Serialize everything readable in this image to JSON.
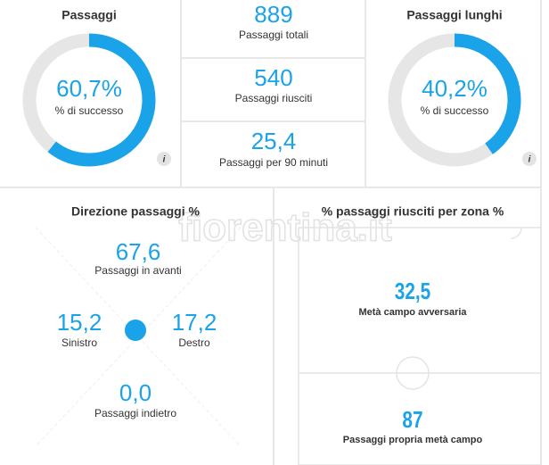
{
  "passaggi": {
    "title": "Passaggi",
    "success": {
      "value": 60.7,
      "label": "60,7%"
    },
    "success_label": "% di successo",
    "info": "i"
  },
  "stats": [
    {
      "value": "889",
      "label": "Passaggi totali"
    },
    {
      "value": "540",
      "label": "Passaggi riusciti"
    },
    {
      "value": "25,4",
      "label": "Passaggi per 90 minuti"
    }
  ],
  "passaggi_lunghi": {
    "title": "Passaggi lunghi",
    "success": {
      "value": 40.2,
      "label": "40,2%"
    },
    "success_label": "% di successo",
    "info": "i"
  },
  "direzione": {
    "title": "Direzione passaggi %",
    "items": [
      {
        "value": "67,6",
        "label": "Passaggi in avanti"
      },
      {
        "value": "15,2",
        "label": "Sinistro"
      },
      {
        "value": "17,2",
        "label": "Destro"
      },
      {
        "value": "0,0",
        "label": "Passaggi indietro"
      }
    ]
  },
  "zone": {
    "title": "% passaggi riusciti per zona %",
    "items": [
      {
        "value": "32,5",
        "label": "Metà campo avversaria"
      },
      {
        "value": "87",
        "label": "Passaggi propria metà campo"
      }
    ]
  },
  "watermark": "fiorentina.it"
}
